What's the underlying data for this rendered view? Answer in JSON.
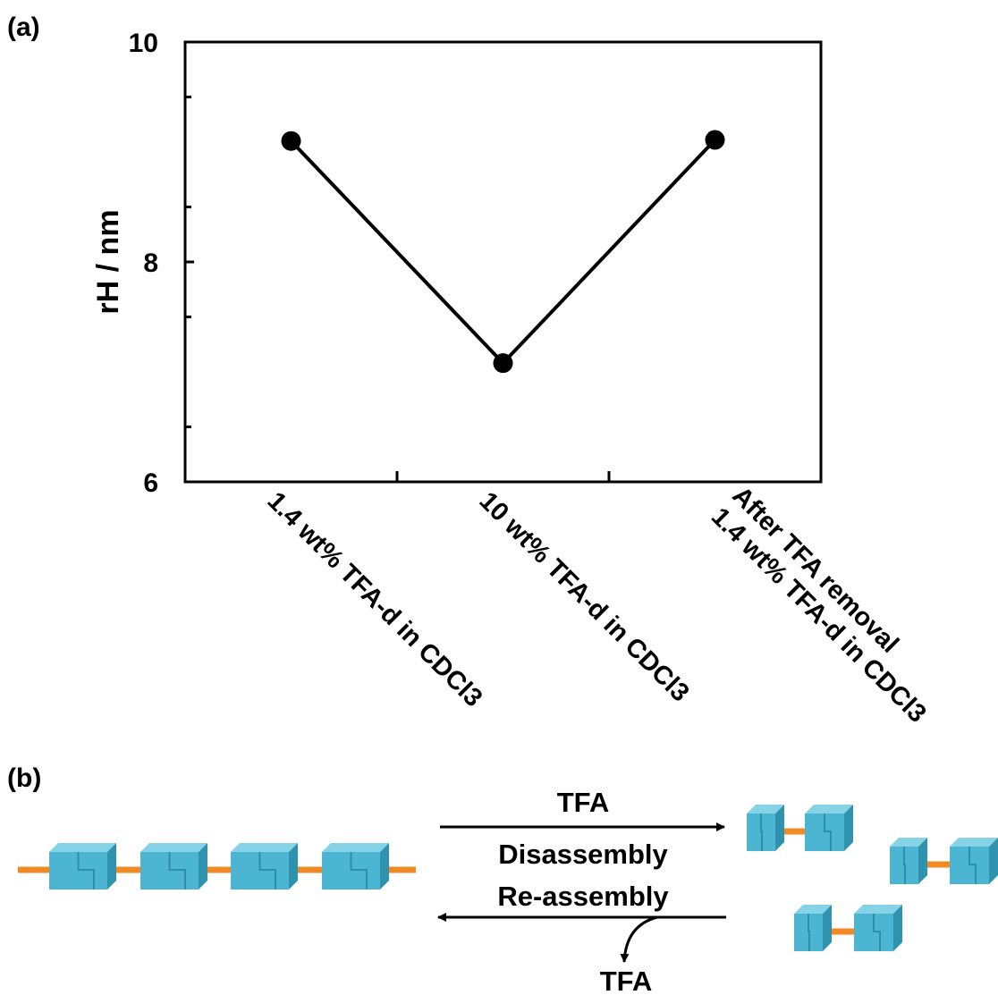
{
  "panel_labels": [
    "(a)",
    "(b)"
  ],
  "chart_data": {
    "type": "line",
    "y_label": "rH / nm",
    "categories": [
      "1.4 wt% TFA-d in CDCl3",
      "10 wt% TFA-d in CDCl3",
      "After TFA removal\n1.4 wt% TFA-d in CDCl3"
    ],
    "values": [
      9.1,
      7.08,
      9.11
    ],
    "color": "#000000",
    "ylim": [
      6,
      10
    ],
    "yticks": [
      6,
      8,
      10
    ],
    "yminorticks": [
      6.5,
      7.5,
      8.5,
      9.5
    ]
  },
  "diagram": {
    "forward_reagent": "TFA",
    "forward_label": "Disassembly",
    "reverse_label": "Re-assembly",
    "reverse_product": "TFA"
  }
}
